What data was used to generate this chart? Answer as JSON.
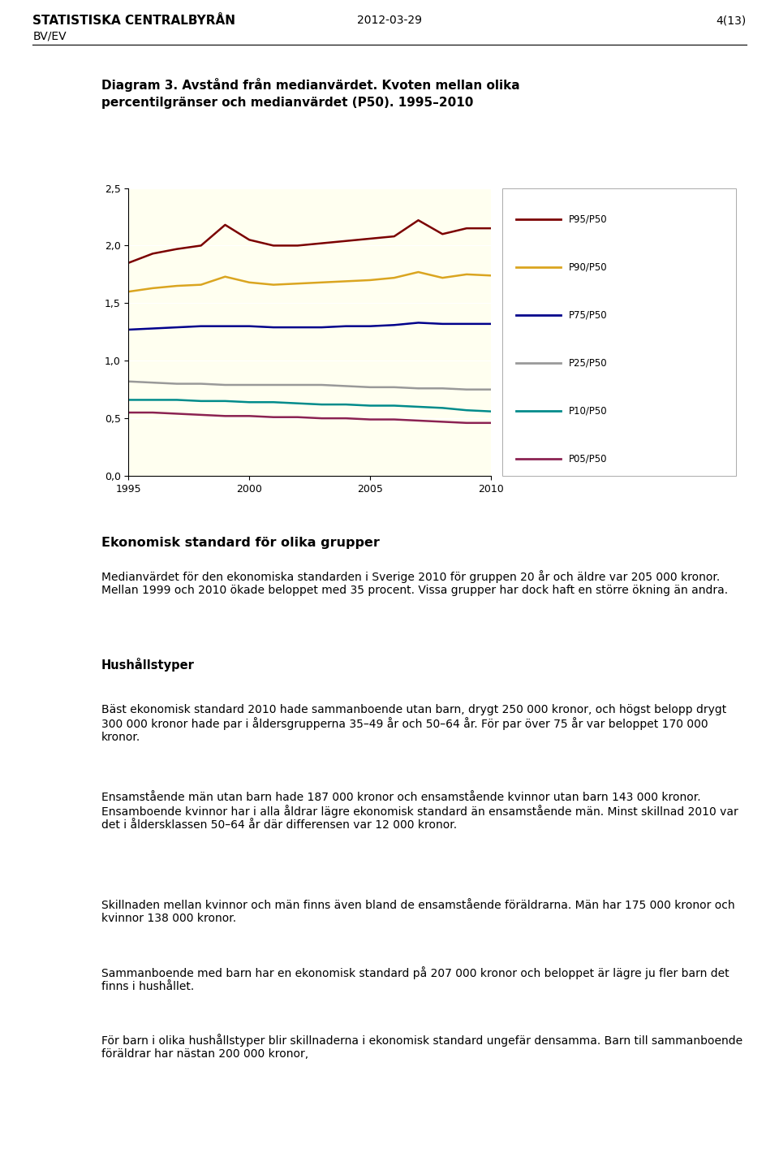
{
  "header_left_top": "STATISTISKA CENTRALBYRÅN",
  "header_left_bottom": "BV/EV",
  "header_center": "2012-03-29",
  "header_right": "4(13)",
  "chart_title_line1": "Diagram 3. Avstånd från medianvärdet. Kvoten mellan olika",
  "chart_title_line2": "percentilgränser och medianvärdet (P50). 1995–2010",
  "years": [
    1995,
    1996,
    1997,
    1998,
    1999,
    2000,
    2001,
    2002,
    2003,
    2004,
    2005,
    2006,
    2007,
    2008,
    2009,
    2010
  ],
  "series": {
    "P95/P50": [
      1.85,
      1.93,
      1.97,
      2.0,
      2.18,
      2.05,
      2.0,
      2.0,
      2.02,
      2.04,
      2.06,
      2.08,
      2.22,
      2.1,
      2.15,
      2.15
    ],
    "P90/P50": [
      1.6,
      1.63,
      1.65,
      1.66,
      1.73,
      1.68,
      1.66,
      1.67,
      1.68,
      1.69,
      1.7,
      1.72,
      1.77,
      1.72,
      1.75,
      1.74
    ],
    "P75/P50": [
      1.27,
      1.28,
      1.29,
      1.3,
      1.3,
      1.3,
      1.29,
      1.29,
      1.29,
      1.3,
      1.3,
      1.31,
      1.33,
      1.32,
      1.32,
      1.32
    ],
    "P25/P50": [
      0.82,
      0.81,
      0.8,
      0.8,
      0.79,
      0.79,
      0.79,
      0.79,
      0.79,
      0.78,
      0.77,
      0.77,
      0.76,
      0.76,
      0.75,
      0.75
    ],
    "P10/P50": [
      0.66,
      0.66,
      0.66,
      0.65,
      0.65,
      0.64,
      0.64,
      0.63,
      0.62,
      0.62,
      0.61,
      0.61,
      0.6,
      0.59,
      0.57,
      0.56
    ],
    "P05/P50": [
      0.55,
      0.55,
      0.54,
      0.53,
      0.52,
      0.52,
      0.51,
      0.51,
      0.5,
      0.5,
      0.49,
      0.49,
      0.48,
      0.47,
      0.46,
      0.46
    ]
  },
  "colors": {
    "P95/P50": "#7B0000",
    "P90/P50": "#DAA520",
    "P75/P50": "#00008B",
    "P25/P50": "#999999",
    "P10/P50": "#008B8B",
    "P05/P50": "#8B2252"
  },
  "plot_bg": "#FFFFF0",
  "ylim": [
    0.0,
    2.5
  ],
  "yticks": [
    0.0,
    0.5,
    1.0,
    1.5,
    2.0,
    2.5
  ],
  "xticks": [
    1995,
    2000,
    2005,
    2010
  ],
  "section_title": "Ekonomisk standard för olika grupper",
  "paragraphs": [
    {
      "bold": false,
      "text": "Medianvärdet för den ekonomiska standarden i Sverige 2010 för gruppen 20 år och äldre var 205 000 kronor. Mellan 1999 och 2010 ökade beloppet med 35 procent. Vissa grupper har dock haft en större ökning än andra."
    },
    {
      "bold": true,
      "text": "Hushållstyper"
    },
    {
      "bold": false,
      "text": "Bäst ekonomisk standard 2010 hade sammanboende utan barn, drygt 250 000 kronor, och högst belopp drygt 300 000 kronor hade par i åldersgrupperna 35–49 år och 50–64 år. För par över 75 år var beloppet 170 000 kronor."
    },
    {
      "bold": false,
      "text": "Ensamstående män utan barn hade 187 000 kronor och ensamstående kvinnor utan barn 143 000 kronor. Ensamboende kvinnor har i alla åldrar lägre ekonomisk standard än ensamstående män. Minst skillnad 2010 var det i åldersklassen 50–64 år där differensen var 12 000 kronor."
    },
    {
      "bold": false,
      "text": "Skillnaden mellan kvinnor och män finns även bland de ensamstående föräldrarna. Män har 175 000 kronor och kvinnor 138 000 kronor."
    },
    {
      "bold": false,
      "text": "Sammanboende med barn har en ekonomisk standard på 207 000 kronor och beloppet är lägre ju fler barn det finns i hushållet."
    },
    {
      "bold": false,
      "text": "För barn i olika hushållstyper blir skillnaderna i ekonomisk standard ungefär densamma. Barn till sammanboende föräldrar har nästan 200 000 kronor,"
    }
  ]
}
